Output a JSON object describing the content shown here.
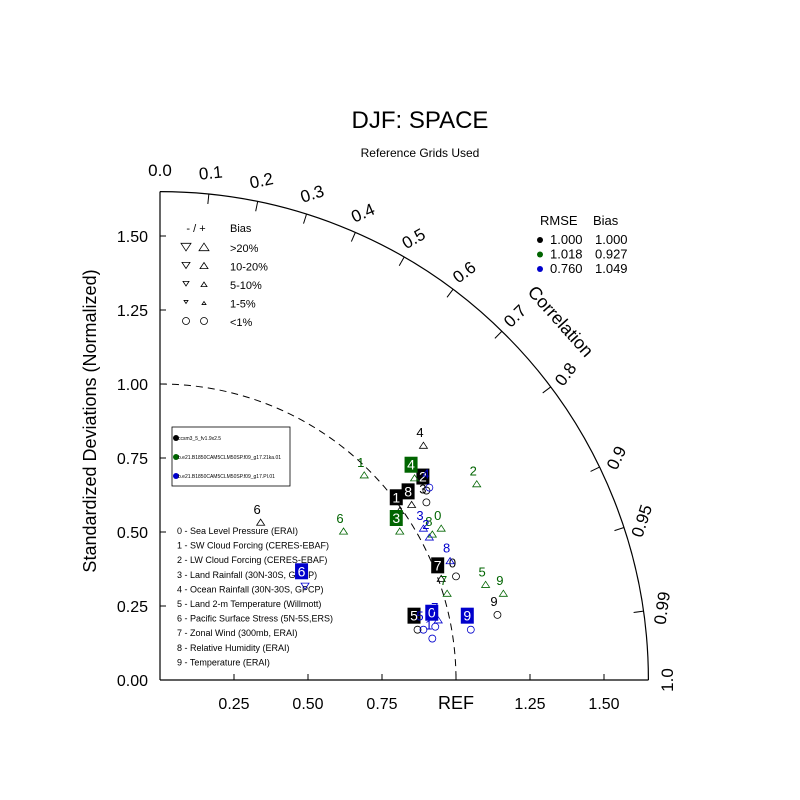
{
  "chart_data": {
    "type": "scatter",
    "subtype": "taylor-diagram",
    "title": "DJF: SPACE",
    "subtitle": "Reference Grids Used",
    "ylabel": "Standardized Deviations (Normalized)",
    "arc_label": "Correlation",
    "ref_label": "REF",
    "std_range": [
      0,
      1.65
    ],
    "std_ticks": [
      "0.00",
      "0.25",
      "0.50",
      "0.75",
      "1.00",
      "1.25",
      "1.50"
    ],
    "std_tick_values": [
      0,
      0.25,
      0.5,
      0.75,
      1.0,
      1.25,
      1.5
    ],
    "x_ticks": [
      "0.25",
      "0.50",
      "0.75",
      "1.25",
      "1.50"
    ],
    "x_tick_values": [
      0.25,
      0.5,
      0.75,
      1.25,
      1.5
    ],
    "corr_ticks": [
      "0.0",
      "0.1",
      "0.2",
      "0.3",
      "0.4",
      "0.5",
      "0.6",
      "0.7",
      "0.8",
      "0.9",
      "0.95",
      "0.99",
      "1.0"
    ],
    "corr_tick_values": [
      0.0,
      0.1,
      0.2,
      0.3,
      0.4,
      0.5,
      0.6,
      0.7,
      0.8,
      0.9,
      0.95,
      0.99,
      1.0
    ],
    "reference_arc_std": 1.0,
    "bias_legend": {
      "header_sign": "- / +",
      "header_bias": "Bias",
      "rows": [
        {
          "label": ">20%",
          "symbol": "triangle",
          "size": 5
        },
        {
          "label": "10-20%",
          "symbol": "triangle",
          "size": 4
        },
        {
          "label": "5-10%",
          "symbol": "triangle",
          "size": 3
        },
        {
          "label": "1-5%",
          "symbol": "triangle",
          "size": 2
        },
        {
          "label": "<1%",
          "symbol": "circle",
          "size": 3
        }
      ]
    },
    "stats_table": {
      "headers": [
        "RMSE",
        "Bias"
      ],
      "rows": [
        {
          "color": "#000000",
          "rmse": "1.000",
          "bias": "1.000"
        },
        {
          "color": "#006400",
          "rmse": "1.018",
          "bias": "0.927"
        },
        {
          "color": "#0000cc",
          "rmse": "0.760",
          "bias": "1.049"
        }
      ]
    },
    "case_legend": [
      {
        "color": "#000000",
        "label": "ccsm3_5_fv1.9x2.5"
      },
      {
        "color": "#006400",
        "label": "b.e21.B1850CAM5CLM50SP.f09_g17.21ka.01"
      },
      {
        "color": "#0000cc",
        "label": "b.e21.B1850CAM5CLM50SP.f09_g17.PI.01"
      }
    ],
    "variables": [
      "0 - Sea Level Pressure (ERAI)",
      "1 - SW Cloud Forcing (CERES-EBAF)",
      "2 - LW Cloud Forcing (CERES-EBAF)",
      "3 - Land Rainfall (30N-30S, GPCP)",
      "4 - Ocean Rainfall (30N-30S, GPCP)",
      "5 - Land 2-m Temperature (Willmott)",
      "6 - Pacific Surface Stress (5N-5S,ERS)",
      "7 - Zonal Wind (300mb, ERAI)",
      "8 - Relative Humidity (ERAI)",
      "9 - Temperature (ERAI)"
    ],
    "series": [
      {
        "color": "#000000",
        "points": [
          {
            "label": "0",
            "x": 1.0,
            "y": 0.35,
            "marker": "circle",
            "boxed": false
          },
          {
            "label": "1",
            "x": 0.81,
            "y": 0.57,
            "marker": "triangle-up",
            "boxed": true
          },
          {
            "label": "2",
            "x": 0.9,
            "y": 0.64,
            "marker": "circle",
            "boxed": true
          },
          {
            "label": "3",
            "x": 0.9,
            "y": 0.6,
            "marker": "circle",
            "boxed": false
          },
          {
            "label": "4",
            "x": 0.89,
            "y": 0.79,
            "marker": "triangle-up",
            "boxed": false
          },
          {
            "label": "5",
            "x": 0.87,
            "y": 0.17,
            "marker": "circle",
            "boxed": true
          },
          {
            "label": "6",
            "x": 0.34,
            "y": 0.53,
            "marker": "triangle-up",
            "boxed": false
          },
          {
            "label": "7",
            "x": 0.95,
            "y": 0.34,
            "marker": "triangle-up",
            "boxed": true
          },
          {
            "label": "8",
            "x": 0.85,
            "y": 0.59,
            "marker": "triangle-up",
            "boxed": true
          },
          {
            "label": "9",
            "x": 1.14,
            "y": 0.22,
            "marker": "circle",
            "boxed": false
          }
        ]
      },
      {
        "color": "#006400",
        "points": [
          {
            "label": "0",
            "x": 0.95,
            "y": 0.51,
            "marker": "triangle-up",
            "boxed": false
          },
          {
            "label": "1",
            "x": 0.69,
            "y": 0.69,
            "marker": "triangle-up",
            "boxed": false
          },
          {
            "label": "2",
            "x": 1.07,
            "y": 0.66,
            "marker": "triangle-up",
            "boxed": false
          },
          {
            "label": "3",
            "x": 0.81,
            "y": 0.5,
            "marker": "triangle-up",
            "boxed": true
          },
          {
            "label": "4",
            "x": 0.86,
            "y": 0.68,
            "marker": "triangle-up",
            "boxed": true
          },
          {
            "label": "5",
            "x": 1.1,
            "y": 0.32,
            "marker": "triangle-up",
            "boxed": false
          },
          {
            "label": "6",
            "x": 0.62,
            "y": 0.5,
            "marker": "triangle-up",
            "boxed": false
          },
          {
            "label": "7",
            "x": 0.97,
            "y": 0.29,
            "marker": "triangle-up",
            "boxed": false
          },
          {
            "label": "8",
            "x": 0.92,
            "y": 0.49,
            "marker": "triangle-up",
            "boxed": false
          },
          {
            "label": "9",
            "x": 1.16,
            "y": 0.29,
            "marker": "triangle-up",
            "boxed": false
          }
        ]
      },
      {
        "color": "#0000cc",
        "points": [
          {
            "label": "0",
            "x": 0.93,
            "y": 0.18,
            "marker": "circle",
            "boxed": true
          },
          {
            "label": "1",
            "x": 0.92,
            "y": 0.14,
            "marker": "circle",
            "boxed": false
          },
          {
            "label": "2",
            "x": 0.91,
            "y": 0.48,
            "marker": "triangle-up",
            "boxed": false
          },
          {
            "label": "3",
            "x": 0.89,
            "y": 0.51,
            "marker": "triangle-up",
            "boxed": false
          },
          {
            "label": "4",
            "x": 0.91,
            "y": 0.65,
            "marker": "circle",
            "boxed": false
          },
          {
            "label": "5",
            "x": 0.89,
            "y": 0.17,
            "marker": "circle",
            "boxed": false
          },
          {
            "label": "6",
            "x": 0.49,
            "y": 0.32,
            "marker": "triangle-down",
            "boxed": true
          },
          {
            "label": "7",
            "x": 0.94,
            "y": 0.2,
            "marker": "triangle-up",
            "boxed": false
          },
          {
            "label": "8",
            "x": 0.98,
            "y": 0.4,
            "marker": "triangle-up",
            "boxed": false
          },
          {
            "label": "9",
            "x": 1.05,
            "y": 0.17,
            "marker": "circle",
            "boxed": true
          }
        ]
      }
    ]
  }
}
